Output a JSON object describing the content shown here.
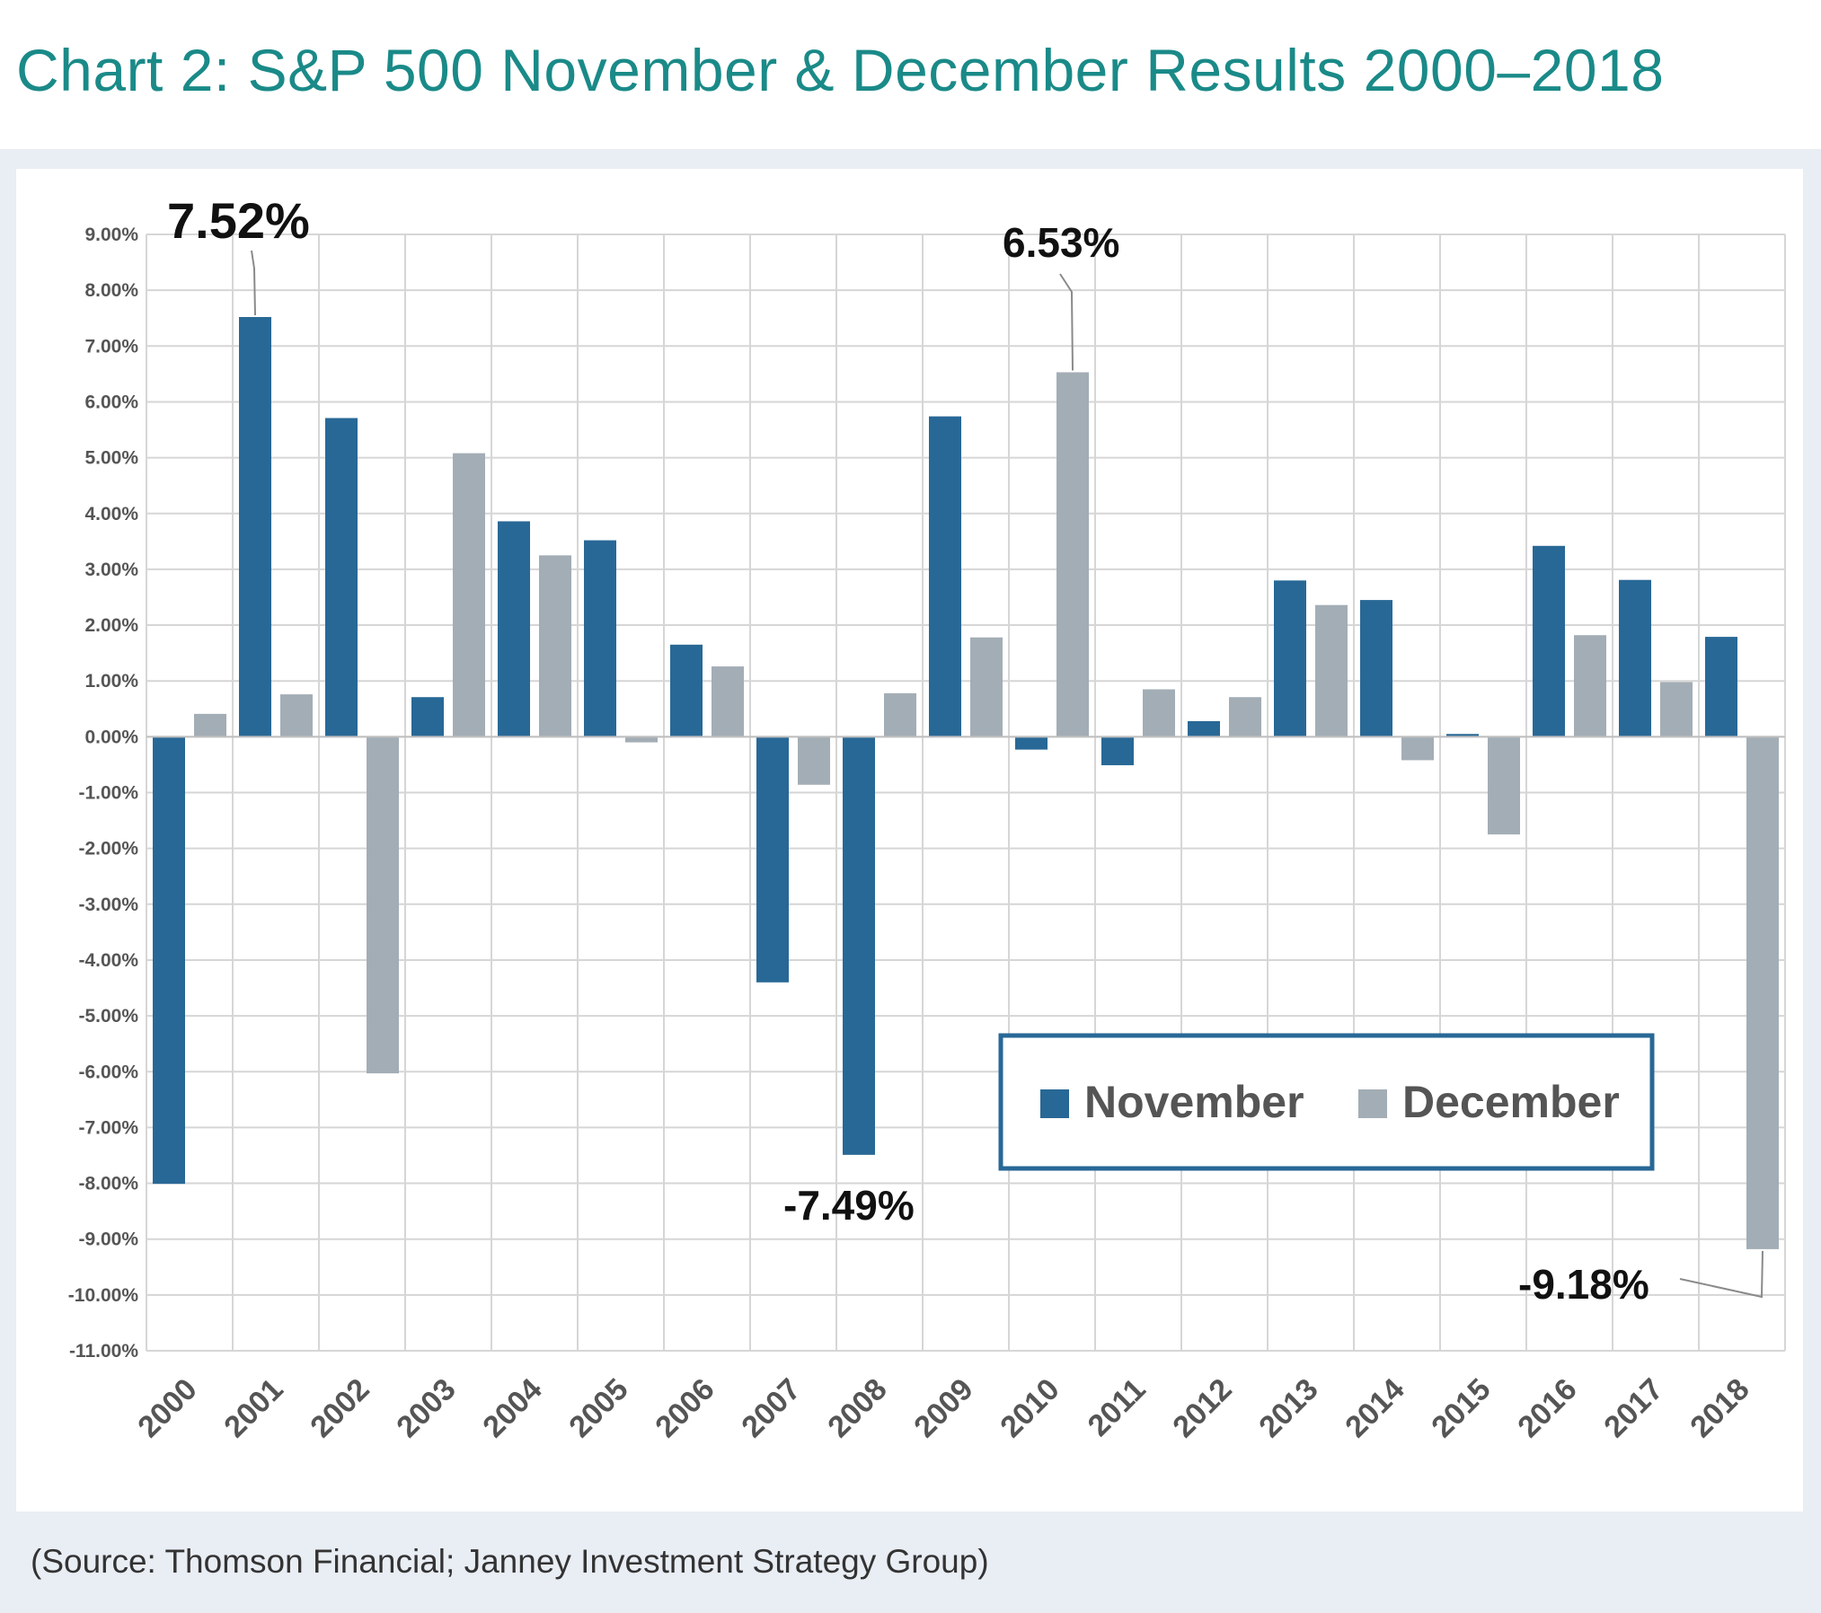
{
  "title": "Chart 2:  S&P 500 November & December Results 2000–2018",
  "source": "(Source: Thomson Financial; Janney Investment Strategy Group)",
  "colors": {
    "title": "#1a8a88",
    "november": "#286896",
    "december": "#a3adb5",
    "grid": "#d6d6d6",
    "panel": "#e9edf4",
    "legend_border": "#286896"
  },
  "chart_data": {
    "type": "bar",
    "title": "Chart 2:  S&P 500 November & December Results 2000–2018",
    "xlabel": "",
    "ylabel": "",
    "ylim": [
      -11,
      9
    ],
    "yticks": [
      9,
      8,
      7,
      6,
      5,
      4,
      3,
      2,
      1,
      0,
      -1,
      -2,
      -3,
      -4,
      -5,
      -6,
      -7,
      -8,
      -9,
      -10,
      -11
    ],
    "ytick_labels": [
      "9.00%",
      "8.00%",
      "7.00%",
      "6.00%",
      "5.00%",
      "4.00%",
      "3.00%",
      "2.00%",
      "1.00%",
      "0.00%",
      "-1.00%",
      "-2.00%",
      "-3.00%",
      "-4.00%",
      "-5.00%",
      "-6.00%",
      "-7.00%",
      "-8.00%",
      "-9.00%",
      "-10.00%",
      "-11.00%"
    ],
    "categories": [
      "2000",
      "2001",
      "2002",
      "2003",
      "2004",
      "2005",
      "2006",
      "2007",
      "2008",
      "2009",
      "2010",
      "2011",
      "2012",
      "2013",
      "2014",
      "2015",
      "2016",
      "2017",
      "2018"
    ],
    "series": [
      {
        "name": "November",
        "values": [
          -8.01,
          7.52,
          5.71,
          0.71,
          3.86,
          3.52,
          1.65,
          -4.4,
          -7.49,
          5.74,
          -0.23,
          -0.51,
          0.28,
          2.8,
          2.45,
          0.05,
          3.42,
          2.81,
          1.79
        ]
      },
      {
        "name": "December",
        "values": [
          0.41,
          0.76,
          -6.03,
          5.08,
          3.25,
          -0.1,
          1.26,
          -0.86,
          0.78,
          1.78,
          6.53,
          0.85,
          0.71,
          2.36,
          -0.42,
          -1.75,
          1.82,
          0.98,
          -9.18
        ]
      }
    ],
    "grid": true,
    "legend": {
      "position": "lower-right",
      "entries": [
        "November",
        "December"
      ]
    },
    "annotations": [
      {
        "text": "7.52%",
        "series": "November",
        "category": "2001"
      },
      {
        "text": "6.53%",
        "series": "December",
        "category": "2010"
      },
      {
        "text": "-7.49%",
        "series": "November",
        "category": "2008"
      },
      {
        "text": "-9.18%",
        "series": "December",
        "category": "2018"
      }
    ]
  }
}
